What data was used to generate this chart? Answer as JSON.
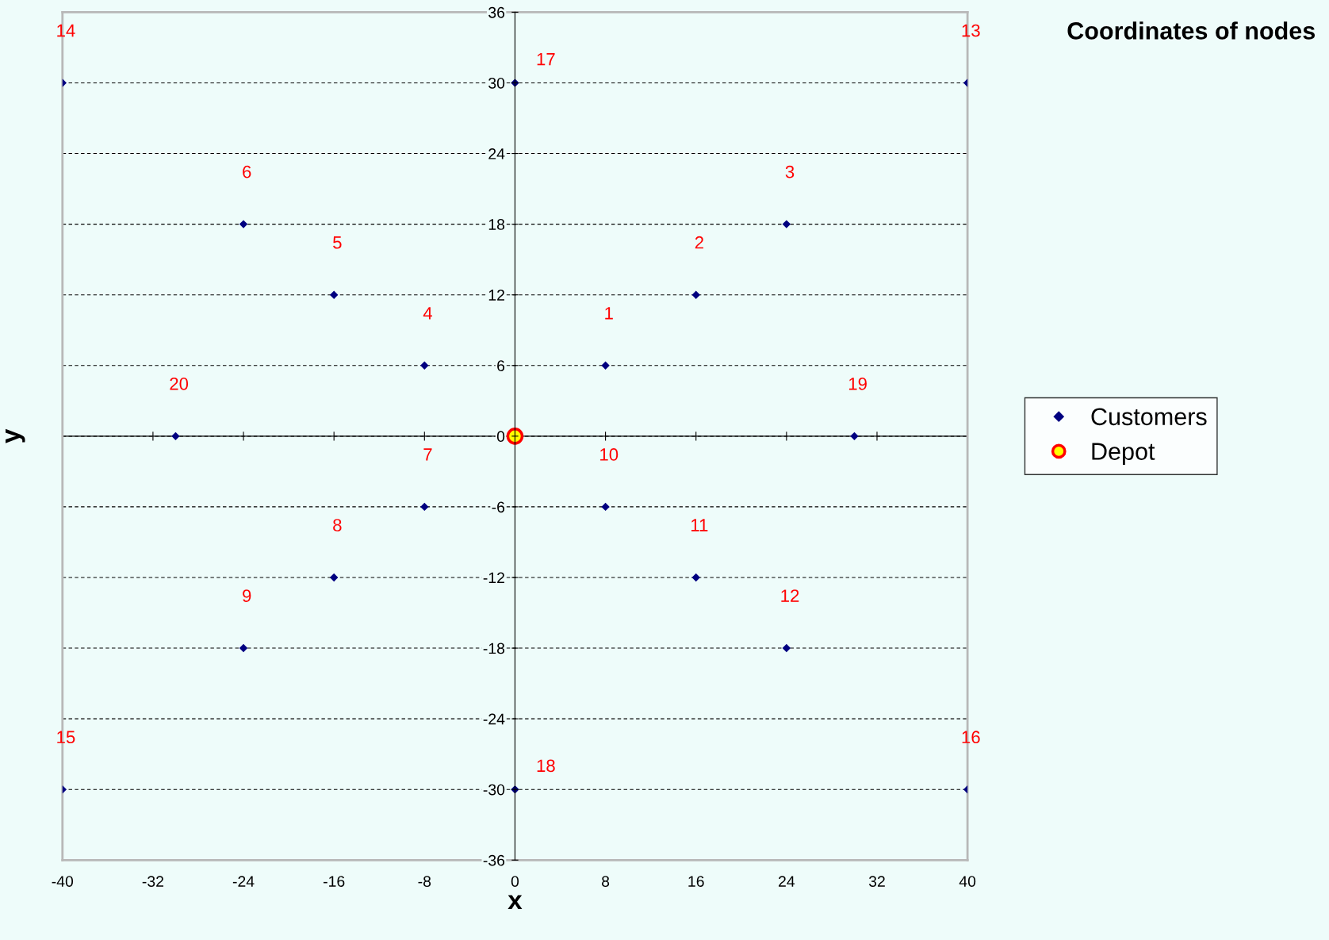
{
  "chart_data": {
    "type": "scatter",
    "title": "Coordinates of nodes",
    "xlabel": "x",
    "ylabel": "y",
    "xlim": [
      -40,
      40
    ],
    "xticks": [
      -40,
      -32,
      -24,
      -16,
      -8,
      0,
      8,
      16,
      24,
      32,
      40
    ],
    "ylim": [
      -36,
      36
    ],
    "yticks": [
      -36,
      -30,
      -24,
      -18,
      -12,
      -6,
      0,
      6,
      12,
      18,
      24,
      30,
      36
    ],
    "grid": "y",
    "legend": "right",
    "series": [
      {
        "name": "Customers",
        "color": "#000080",
        "marker": "diamond",
        "x": [
          8,
          16,
          24,
          -8,
          -16,
          -24,
          -8,
          -16,
          -24,
          8,
          16,
          24,
          40,
          -40,
          -40,
          40,
          0,
          0,
          30,
          -30
        ],
        "values": [
          6,
          12,
          18,
          6,
          12,
          18,
          -6,
          -12,
          -18,
          -6,
          -12,
          -18,
          30,
          30,
          -30,
          -30,
          30,
          -30,
          0,
          0
        ]
      },
      {
        "name": "Depot",
        "color": "#ffff00",
        "marker": "circle",
        "x": [
          0
        ],
        "values": [
          0
        ]
      }
    ],
    "annotations": [
      {
        "text": "1",
        "x": 8,
        "y": 6
      },
      {
        "text": "2",
        "x": 16,
        "y": 12
      },
      {
        "text": "3",
        "x": 24,
        "y": 18
      },
      {
        "text": "4",
        "x": -8,
        "y": 6
      },
      {
        "text": "5",
        "x": -16,
        "y": 12
      },
      {
        "text": "6",
        "x": -24,
        "y": 18
      },
      {
        "text": "7",
        "x": -8,
        "y": -6
      },
      {
        "text": "8",
        "x": -16,
        "y": -12
      },
      {
        "text": "9",
        "x": -24,
        "y": -18
      },
      {
        "text": "10",
        "x": 8,
        "y": -6
      },
      {
        "text": "11",
        "x": 16,
        "y": -12
      },
      {
        "text": "12",
        "x": 24,
        "y": -18
      },
      {
        "text": "13",
        "x": 40,
        "y": 30
      },
      {
        "text": "14",
        "x": -40,
        "y": 30
      },
      {
        "text": "15",
        "x": -40,
        "y": -30
      },
      {
        "text": "16",
        "x": 40,
        "y": -30
      },
      {
        "text": "17",
        "x": 0,
        "y": 30
      },
      {
        "text": "18",
        "x": 0,
        "y": -30
      },
      {
        "text": "19",
        "x": 30,
        "y": 0
      },
      {
        "text": "20",
        "x": -30,
        "y": 0
      }
    ]
  }
}
